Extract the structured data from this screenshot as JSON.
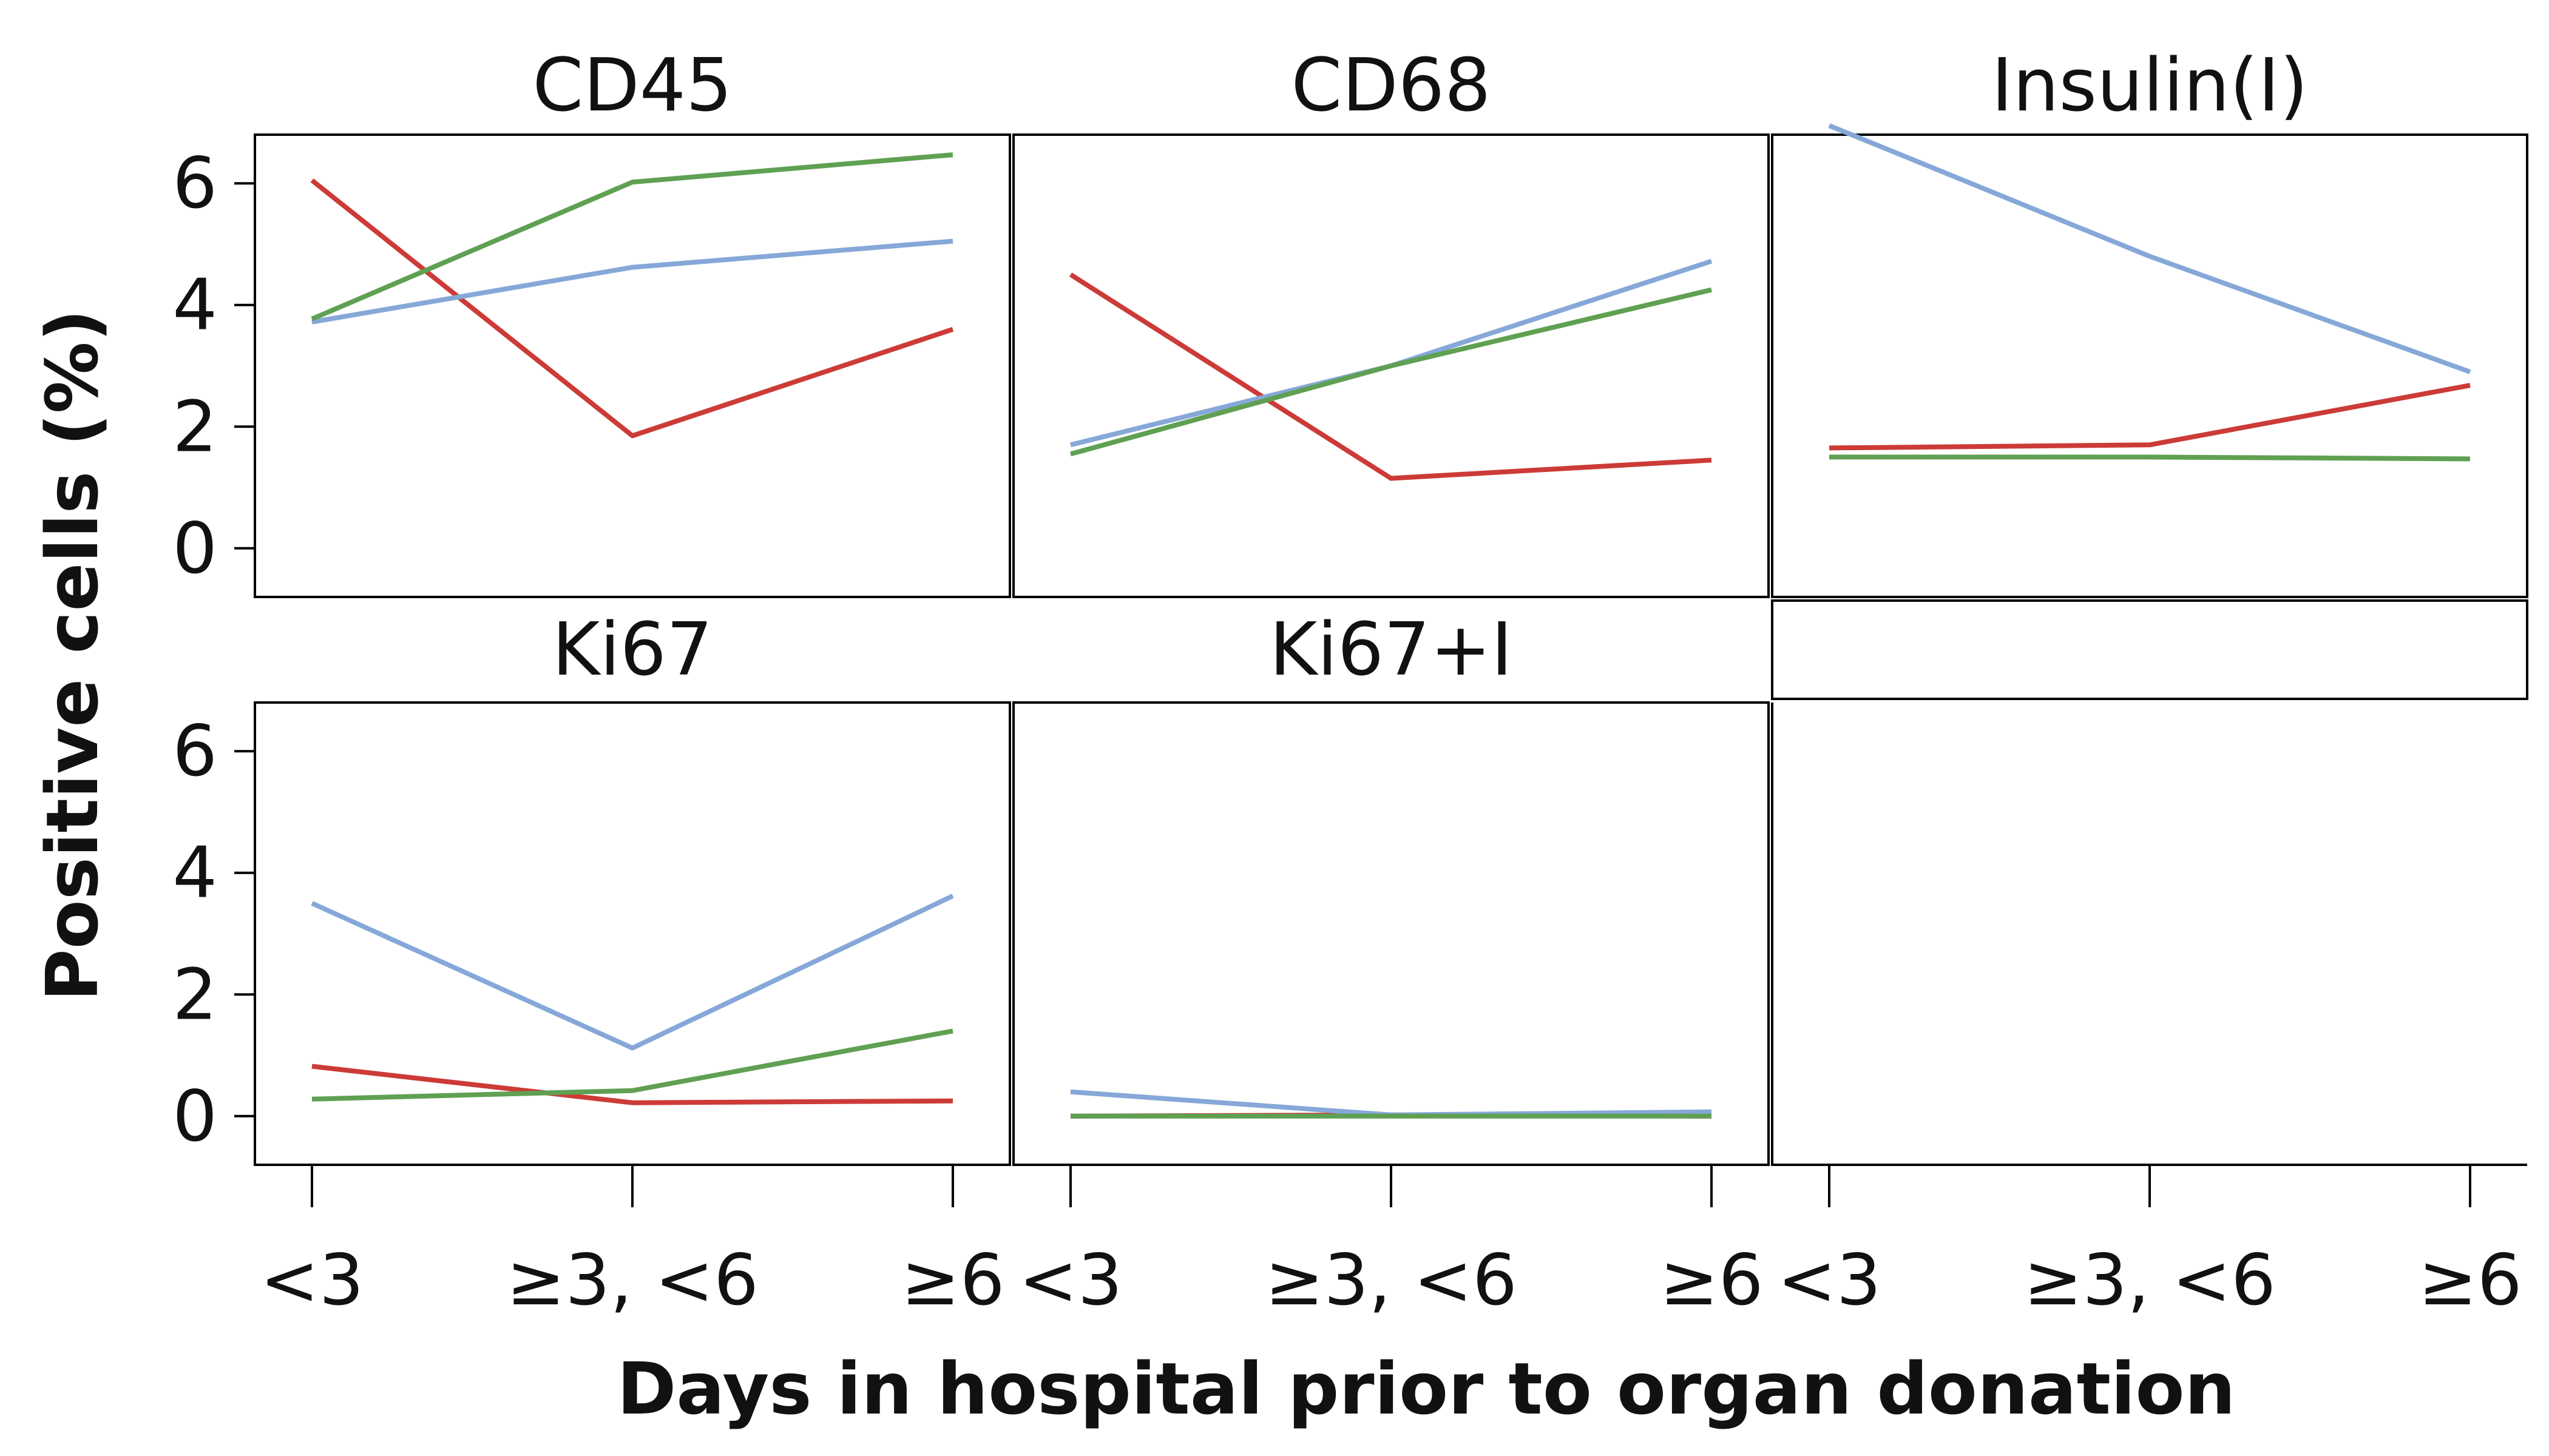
{
  "chart_data": {
    "type": "line",
    "layout": "faceted 2x3",
    "xlabel": "Days in hospital prior to organ donation",
    "ylabel": "Positive cells (%)",
    "categories": [
      "<3",
      "≥3, <6",
      "≥6"
    ],
    "ylim": [
      -0.8,
      6.8
    ],
    "yticks": [
      0,
      2,
      4,
      6
    ],
    "grid": false,
    "legend": "none",
    "series_colors": [
      "#cc3b37",
      "#86a8d8",
      "#5fa052"
    ],
    "panels": [
      {
        "title": "CD45",
        "series": [
          {
            "values": [
              6.05,
              1.85,
              3.6
            ]
          },
          {
            "values": [
              3.72,
              4.62,
              5.05
            ]
          },
          {
            "values": [
              3.77,
              6.02,
              6.47
            ]
          }
        ]
      },
      {
        "title": "CD68",
        "series": [
          {
            "values": [
              4.5,
              1.15,
              1.45
            ]
          },
          {
            "values": [
              1.7,
              3.0,
              4.72
            ]
          },
          {
            "values": [
              1.55,
              3.0,
              4.25
            ]
          }
        ]
      },
      {
        "title": "Insulin(I)",
        "series": [
          {
            "values": [
              1.65,
              1.7,
              2.68
            ]
          },
          {
            "values": [
              6.95,
              4.8,
              2.9
            ]
          },
          {
            "values": [
              1.5,
              1.5,
              1.47
            ]
          }
        ]
      },
      {
        "title": "Ki67",
        "series": [
          {
            "values": [
              0.82,
              0.22,
              0.25
            ]
          },
          {
            "values": [
              3.5,
              1.12,
              3.62
            ]
          },
          {
            "values": [
              0.28,
              0.42,
              1.4
            ]
          }
        ]
      },
      {
        "title": "Ki67+I",
        "series": [
          {
            "values": [
              0.0,
              0.02,
              0.0
            ]
          },
          {
            "values": [
              0.4,
              0.02,
              0.07
            ]
          },
          {
            "values": [
              0.0,
              0.0,
              0.0
            ]
          }
        ]
      }
    ]
  }
}
